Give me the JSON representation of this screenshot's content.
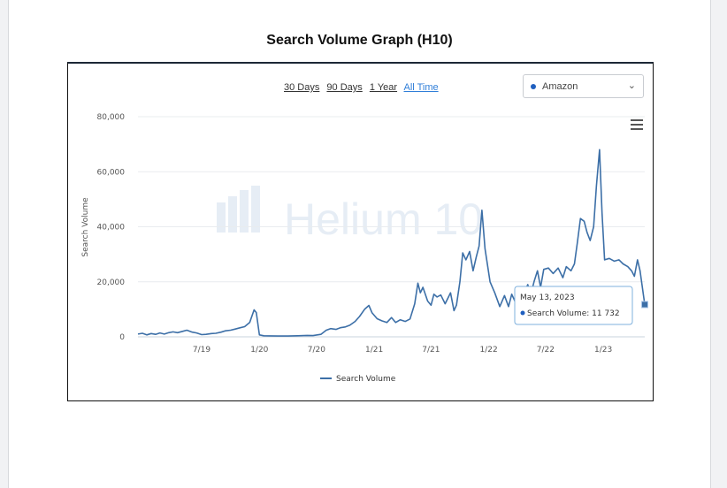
{
  "document": {
    "title": "Search Volume Graph (H10)"
  },
  "controls": {
    "ranges": [
      "30 Days",
      "90 Days",
      "1 Year",
      "All Time"
    ],
    "active_range": "All Time",
    "marketplace": "Amazon",
    "accent_color": "#2f7ed8"
  },
  "watermark": "Helium 10",
  "chart_data": {
    "type": "line",
    "ylabel": "Search Volume",
    "xlabel": "",
    "ylim": [
      0,
      80000
    ],
    "yticks": [
      0,
      20000,
      40000,
      60000,
      80000
    ],
    "ytick_labels": [
      "0",
      "20,000",
      "40,000",
      "60,000",
      "80,000"
    ],
    "xlim": [
      "2018-12-10",
      "2023-05-13"
    ],
    "xticks": [
      "2019-07-01",
      "2020-01-01",
      "2020-07-01",
      "2021-01-01",
      "2021-07-01",
      "2022-01-01",
      "2022-07-01",
      "2023-01-01"
    ],
    "xtick_labels": [
      "7/19",
      "1/20",
      "7/20",
      "1/21",
      "7/21",
      "1/22",
      "7/22",
      "1/23"
    ],
    "legend": "bottom-center",
    "grid": true,
    "series": [
      {
        "name": "Search Volume",
        "color": "#3c6fa7",
        "points": [
          [
            "2018-12-10",
            1000
          ],
          [
            "2018-12-24",
            1300
          ],
          [
            "2019-01-07",
            700
          ],
          [
            "2019-01-21",
            1200
          ],
          [
            "2019-02-04",
            900
          ],
          [
            "2019-02-18",
            1400
          ],
          [
            "2019-03-04",
            1000
          ],
          [
            "2019-03-18",
            1500
          ],
          [
            "2019-04-01",
            1800
          ],
          [
            "2019-04-15",
            1500
          ],
          [
            "2019-05-01",
            2000
          ],
          [
            "2019-05-15",
            2400
          ],
          [
            "2019-06-01",
            1700
          ],
          [
            "2019-06-15",
            1400
          ],
          [
            "2019-07-01",
            800
          ],
          [
            "2019-07-15",
            900
          ],
          [
            "2019-08-01",
            1200
          ],
          [
            "2019-08-15",
            1300
          ],
          [
            "2019-09-01",
            1700
          ],
          [
            "2019-09-15",
            2200
          ],
          [
            "2019-10-01",
            2400
          ],
          [
            "2019-10-15",
            2800
          ],
          [
            "2019-11-01",
            3300
          ],
          [
            "2019-11-15",
            3700
          ],
          [
            "2019-12-01",
            5200
          ],
          [
            "2019-12-15",
            9800
          ],
          [
            "2019-12-22",
            8800
          ],
          [
            "2020-01-01",
            700
          ],
          [
            "2020-01-15",
            400
          ],
          [
            "2020-02-01",
            350
          ],
          [
            "2020-03-01",
            300
          ],
          [
            "2020-04-01",
            300
          ],
          [
            "2020-05-01",
            400
          ],
          [
            "2020-06-01",
            500
          ],
          [
            "2020-06-20",
            450
          ],
          [
            "2020-07-15",
            900
          ],
          [
            "2020-08-01",
            2400
          ],
          [
            "2020-08-15",
            3000
          ],
          [
            "2020-09-01",
            2700
          ],
          [
            "2020-09-15",
            3300
          ],
          [
            "2020-10-01",
            3600
          ],
          [
            "2020-10-15",
            4200
          ],
          [
            "2020-11-01",
            5600
          ],
          [
            "2020-11-15",
            7400
          ],
          [
            "2020-12-01",
            10000
          ],
          [
            "2020-12-15",
            11400
          ],
          [
            "2020-12-25",
            8700
          ],
          [
            "2021-01-10",
            6600
          ],
          [
            "2021-01-25",
            5800
          ],
          [
            "2021-02-10",
            5200
          ],
          [
            "2021-02-25",
            7000
          ],
          [
            "2021-03-10",
            5200
          ],
          [
            "2021-03-25",
            6200
          ],
          [
            "2021-04-10",
            5600
          ],
          [
            "2021-04-25",
            6500
          ],
          [
            "2021-05-10",
            12000
          ],
          [
            "2021-05-20",
            19500
          ],
          [
            "2021-05-28",
            16000
          ],
          [
            "2021-06-05",
            18000
          ],
          [
            "2021-06-20",
            13000
          ],
          [
            "2021-07-01",
            11500
          ],
          [
            "2021-07-10",
            15500
          ],
          [
            "2021-07-20",
            14500
          ],
          [
            "2021-08-01",
            15200
          ],
          [
            "2021-08-15",
            12000
          ],
          [
            "2021-09-01",
            16000
          ],
          [
            "2021-09-12",
            9500
          ],
          [
            "2021-09-20",
            11500
          ],
          [
            "2021-10-01",
            20000
          ],
          [
            "2021-10-10",
            30500
          ],
          [
            "2021-10-20",
            28000
          ],
          [
            "2021-11-01",
            31000
          ],
          [
            "2021-11-12",
            24000
          ],
          [
            "2021-11-22",
            29000
          ],
          [
            "2021-12-01",
            33000
          ],
          [
            "2021-12-10",
            46000
          ],
          [
            "2021-12-20",
            32000
          ],
          [
            "2022-01-05",
            20000
          ],
          [
            "2022-01-20",
            16000
          ],
          [
            "2022-02-05",
            11000
          ],
          [
            "2022-02-20",
            15000
          ],
          [
            "2022-03-05",
            11000
          ],
          [
            "2022-03-15",
            15500
          ],
          [
            "2022-03-25",
            13000
          ],
          [
            "2022-04-10",
            13500
          ],
          [
            "2022-04-25",
            16000
          ],
          [
            "2022-05-05",
            19000
          ],
          [
            "2022-05-15",
            15500
          ],
          [
            "2022-05-25",
            20000
          ],
          [
            "2022-06-05",
            24000
          ],
          [
            "2022-06-15",
            18000
          ],
          [
            "2022-06-25",
            24500
          ],
          [
            "2022-07-10",
            25000
          ],
          [
            "2022-07-25",
            23000
          ],
          [
            "2022-08-10",
            25000
          ],
          [
            "2022-08-25",
            21500
          ],
          [
            "2022-09-05",
            25500
          ],
          [
            "2022-09-20",
            24000
          ],
          [
            "2022-10-01",
            26500
          ],
          [
            "2022-10-10",
            34000
          ],
          [
            "2022-10-20",
            43000
          ],
          [
            "2022-11-01",
            42000
          ],
          [
            "2022-11-10",
            38000
          ],
          [
            "2022-11-20",
            35000
          ],
          [
            "2022-12-01",
            40000
          ],
          [
            "2022-12-10",
            55000
          ],
          [
            "2022-12-20",
            68000
          ],
          [
            "2022-12-28",
            45000
          ],
          [
            "2023-01-05",
            28000
          ],
          [
            "2023-01-20",
            28500
          ],
          [
            "2023-02-05",
            27500
          ],
          [
            "2023-02-20",
            28000
          ],
          [
            "2023-03-05",
            26500
          ],
          [
            "2023-03-20",
            25500
          ],
          [
            "2023-04-01",
            24000
          ],
          [
            "2023-04-10",
            22000
          ],
          [
            "2023-04-20",
            28000
          ],
          [
            "2023-04-28",
            24000
          ],
          [
            "2023-05-13",
            11732
          ]
        ]
      }
    ],
    "tooltip": {
      "date": "May 13, 2023",
      "series_label": "Search Volume",
      "value_text": "11 732",
      "point": [
        "2023-05-13",
        11732
      ]
    }
  }
}
